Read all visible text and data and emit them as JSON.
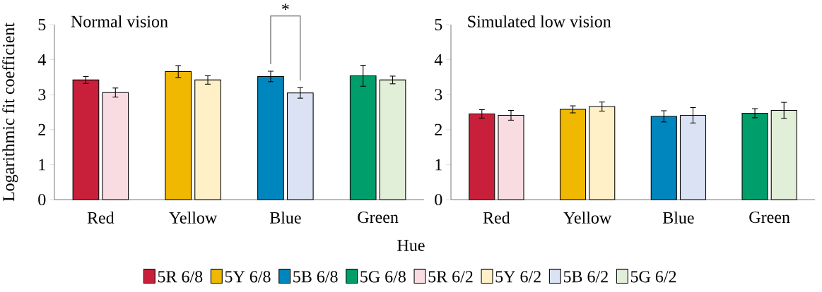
{
  "chart_data": [
    {
      "type": "bar",
      "title": "Normal vision",
      "xlabel": "Hue",
      "ylabel": "Logarithmic fit coefficient",
      "categories": [
        "Red",
        "Yellow",
        "Blue",
        "Green"
      ],
      "series": [
        {
          "name": "5R 6/8",
          "color": "#c8203a",
          "values": [
            3.42,
            null,
            null,
            null
          ],
          "errors": [
            0.1,
            null,
            null,
            null
          ]
        },
        {
          "name": "5Y 6/8",
          "color": "#f0b800",
          "values": [
            null,
            3.66,
            null,
            null
          ],
          "errors": [
            null,
            0.17,
            null,
            null
          ]
        },
        {
          "name": "5B 6/8",
          "color": "#0086be",
          "values": [
            null,
            null,
            3.52,
            null
          ],
          "errors": [
            null,
            null,
            0.15,
            null
          ]
        },
        {
          "name": "5G 6/8",
          "color": "#009e6a",
          "values": [
            null,
            null,
            null,
            3.54
          ],
          "errors": [
            null,
            null,
            null,
            0.3
          ]
        },
        {
          "name": "5R 6/2",
          "color": "#f9dce1",
          "values": [
            3.06,
            null,
            null,
            null
          ],
          "errors": [
            0.13,
            null,
            null,
            null
          ]
        },
        {
          "name": "5Y 6/2",
          "color": "#fff0c8",
          "values": [
            null,
            3.42,
            null,
            null
          ],
          "errors": [
            null,
            0.12,
            null,
            null
          ]
        },
        {
          "name": "5B 6/2",
          "color": "#dae2f4",
          "values": [
            null,
            null,
            3.05,
            null
          ],
          "errors": [
            null,
            null,
            0.15,
            null
          ]
        },
        {
          "name": "5G 6/2",
          "color": "#e2efd8",
          "values": [
            null,
            null,
            null,
            3.42
          ],
          "errors": [
            null,
            null,
            null,
            0.11
          ]
        }
      ],
      "ylim": [
        0,
        5
      ],
      "yticks": [
        0,
        1,
        2,
        3,
        4,
        5
      ],
      "legend": "bottom",
      "annotations": [
        "*"
      ]
    },
    {
      "type": "bar",
      "title": "Simulated low vision",
      "categories": [
        "Red",
        "Yellow",
        "Blue",
        "Green"
      ],
      "series": [
        {
          "color": "#c8203a",
          "values": [
            2.45,
            null,
            null,
            null
          ],
          "errors": [
            0.12,
            null,
            null,
            null
          ]
        },
        {
          "color": "#f0b800",
          "values": [
            null,
            2.58,
            null,
            null
          ],
          "errors": [
            null,
            0.1,
            null,
            null
          ]
        },
        {
          "color": "#0086be",
          "values": [
            null,
            null,
            2.38,
            null
          ],
          "errors": [
            null,
            null,
            0.16,
            null
          ]
        },
        {
          "color": "#009e6a",
          "values": [
            null,
            null,
            null,
            2.47
          ],
          "errors": [
            null,
            null,
            null,
            0.13
          ]
        },
        {
          "color": "#f9dce1",
          "values": [
            2.41,
            null,
            null,
            null
          ],
          "errors": [
            0.14,
            null,
            null,
            null
          ]
        },
        {
          "color": "#fff0c8",
          "values": [
            null,
            2.66,
            null,
            null
          ],
          "errors": [
            null,
            0.13,
            null,
            null
          ]
        },
        {
          "color": "#dae2f4",
          "values": [
            null,
            null,
            2.41,
            null
          ],
          "errors": [
            null,
            null,
            0.22,
            null
          ]
        },
        {
          "color": "#e2efd8",
          "values": [
            null,
            null,
            null,
            2.55
          ],
          "errors": [
            null,
            null,
            null,
            0.23
          ]
        }
      ],
      "ylim": [
        0,
        5
      ],
      "yticks": [
        0,
        1,
        2,
        3,
        4,
        5
      ]
    }
  ]
}
